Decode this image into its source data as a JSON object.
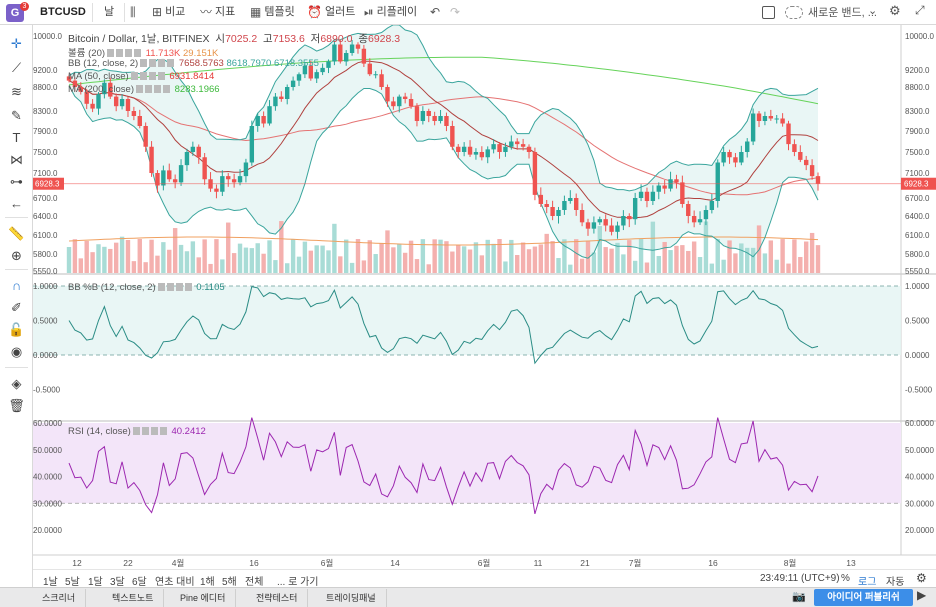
{
  "topbar": {
    "logo": "G",
    "logo_badge": "3",
    "symbol": "BTCUSD",
    "interval": "날",
    "compare": "비교",
    "indicators": "지표",
    "templates": "템플릿",
    "alert": "얼러트",
    "replay": "리플레이",
    "layout_name": "새로운 밴드, ..."
  },
  "title": {
    "name": "Bitcoin / Dollar, 1날, BITFINEX",
    "o_label": "시",
    "o": "7025.2",
    "h_label": "고",
    "h": "7153.6",
    "l_label": "저",
    "l": "6890.0",
    "c_label": "종",
    "c": "6928.3"
  },
  "legends": {
    "volume": {
      "label": "볼륨 (20)",
      "v1": "11.713K",
      "v2": "29.151K"
    },
    "bb": {
      "label": "BB (12, close, 2)",
      "v1": "7658.5763",
      "v2": "8618.7970",
      "v3": "6718.3555"
    },
    "ma50": {
      "label": "MA (50, close)",
      "v": "6931.8414"
    },
    "ma200": {
      "label": "MA (200, close)",
      "v": "8283.1966"
    },
    "bbpct": {
      "label": "BB %B (12, close, 2)",
      "v": "0.1105"
    },
    "rsi": {
      "label": "RSI (14, close)",
      "v": "40.2412"
    }
  },
  "price_axis": [
    "10000.0",
    "9200.0",
    "8800.0",
    "8300.0",
    "7900.0",
    "7500.0",
    "7100.0",
    "6700.0",
    "6400.0",
    "6100.0",
    "5800.0",
    "5550.0"
  ],
  "current_price": "6928.3",
  "bb_axis": [
    "1.0000",
    "0.5000",
    "0.0000",
    "-0.5000"
  ],
  "rsi_axis": [
    "60.0000",
    "50.0000",
    "40.0000",
    "30.0000",
    "20.0000"
  ],
  "time_axis": [
    "12",
    "22",
    "4월",
    "16",
    "6월",
    "14",
    "6월",
    "11",
    "21",
    "7월",
    "16",
    "8월",
    "13"
  ],
  "range_bar": {
    "ranges": [
      "1날",
      "5날",
      "1달",
      "3달",
      "6달",
      "연초 대비",
      "1해",
      "5해",
      "전체"
    ],
    "goto": "... 로 가기",
    "clock": "23:49:11 (UTC+9)",
    "percent": "%",
    "log": "로그",
    "auto": "자동"
  },
  "bottom_tabs": [
    "스크리너",
    "텍스트노트",
    "Pine 에디터",
    "전략테스터",
    "트레이딩패널"
  ],
  "publish_label": "아이디어 퍼블리쉬",
  "colors": {
    "up": "#26a69a",
    "down": "#ef5350",
    "bb": "#3aa59d",
    "bb_fill": "#e3f4f2",
    "ma50": "#e57373",
    "ma200": "#66d35a",
    "mid": "#b0413e",
    "rsi": "#9c27b0",
    "rsi_fill": "#f3e5f9"
  },
  "chart_data": {
    "type": "candlestick",
    "title": "Bitcoin / Dollar, 1날, BITFINEX",
    "series_close": [
      8950,
      8800,
      8700,
      8450,
      8350,
      8650,
      8900,
      8600,
      8400,
      8550,
      8300,
      8200,
      8000,
      7600,
      7100,
      6900,
      7150,
      7000,
      6950,
      7250,
      7500,
      7600,
      7400,
      7000,
      6850,
      6800,
      7050,
      7000,
      6950,
      7050,
      7300,
      8000,
      8200,
      8050,
      8400,
      8600,
      8550,
      8800,
      8950,
      9100,
      9300,
      9000,
      9150,
      9250,
      9400,
      9800,
      9400,
      9600,
      9800,
      9700,
      9350,
      9100,
      9100,
      8800,
      8500,
      8400,
      8600,
      8550,
      8400,
      8100,
      8300,
      8200,
      8100,
      8200,
      8000,
      7600,
      7500,
      7600,
      7450,
      7500,
      7400,
      7550,
      7650,
      7500,
      7600,
      7700,
      7650,
      7600,
      7500,
      6750,
      6600,
      6550,
      6400,
      6500,
      6650,
      6700,
      6500,
      6300,
      6200,
      6300,
      6350,
      6250,
      6150,
      6250,
      6400,
      6350,
      6700,
      6800,
      6650,
      6800,
      6900,
      6850,
      7000,
      6950,
      6600,
      6400,
      6300,
      6350,
      6500,
      6650,
      7300,
      7500,
      7400,
      7300,
      7500,
      7700,
      8250,
      8100,
      8200,
      8150,
      8150,
      8050,
      7650,
      7500,
      7350,
      7250,
      7050,
      6928.3
    ],
    "volume_ma_last": 11713,
    "rsi_last": 40.2412,
    "bbpct_last": 0.1105
  }
}
